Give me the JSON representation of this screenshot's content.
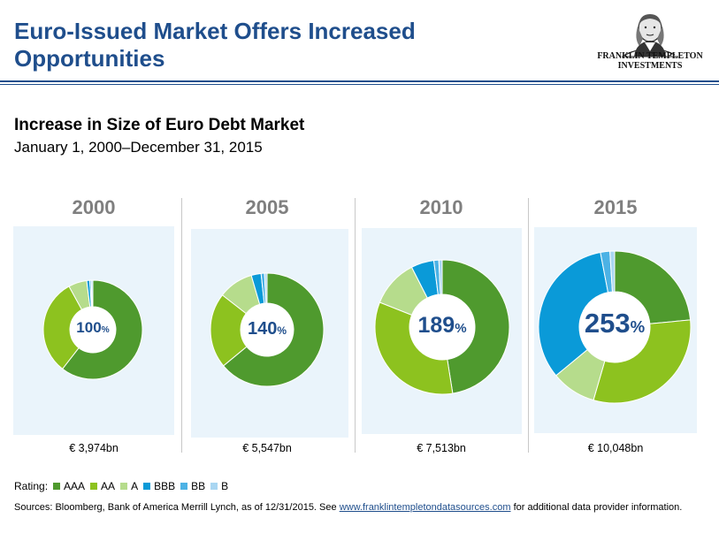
{
  "header": {
    "title_line1": "Euro-Issued Market Offers Increased",
    "title_line2": "Opportunities",
    "logo_line1": "FRANKLIN TEMPLETON",
    "logo_line2": "INVESTMENTS"
  },
  "chart_heading": {
    "title": "Increase in Size of Euro Debt Market",
    "subtitle": "January 1, 2000–December 31, 2015"
  },
  "colors": {
    "AAA": "#4f9a2e",
    "AA": "#8dc21f",
    "A": "#b6dc8c",
    "BBB": "#0a9ad8",
    "BB": "#4cb2e5",
    "B": "#a9d6f2",
    "title": "#1f4e8c",
    "panel_bg": "#eaf4fb"
  },
  "legend": {
    "label": "Rating:",
    "items": [
      "AAA",
      "AA",
      "A",
      "BBB",
      "BB",
      "B"
    ]
  },
  "footer": {
    "sources_prefix": "Sources: Bloomberg, Bank of America Merrill Lynch, as of 12/31/2015.  See",
    "link_text": "www.franklintempletondatasources.com",
    "sources_suffix": "for additional data provider information."
  },
  "chart_data": {
    "type": "donut",
    "title": "Increase in Size of Euro Debt Market",
    "subtitle": "January 1, 2000–December 31, 2015",
    "categories": [
      "AAA",
      "AA",
      "A",
      "BBB",
      "BB",
      "B"
    ],
    "charts": [
      {
        "year": "2000",
        "center_number": "100",
        "center_unit": "%",
        "amount": "€ 3,974bn",
        "values": [
          60.5,
          31.5,
          6.0,
          1.0,
          0.5,
          0.5
        ]
      },
      {
        "year": "2005",
        "center_number": "140",
        "center_unit": "%",
        "amount": "€ 5,547bn",
        "values": [
          64.0,
          21.5,
          10.0,
          2.8,
          1.0,
          0.7
        ]
      },
      {
        "year": "2010",
        "center_number": "189",
        "center_unit": "%",
        "amount": "€ 7,513bn",
        "values": [
          47.5,
          33.5,
          11.5,
          5.5,
          1.2,
          0.8
        ]
      },
      {
        "year": "2015",
        "center_number": "253",
        "center_unit": "%",
        "amount": "€ 10,048bn",
        "values": [
          23.5,
          31.0,
          9.5,
          33.0,
          2.0,
          1.0
        ]
      }
    ]
  }
}
